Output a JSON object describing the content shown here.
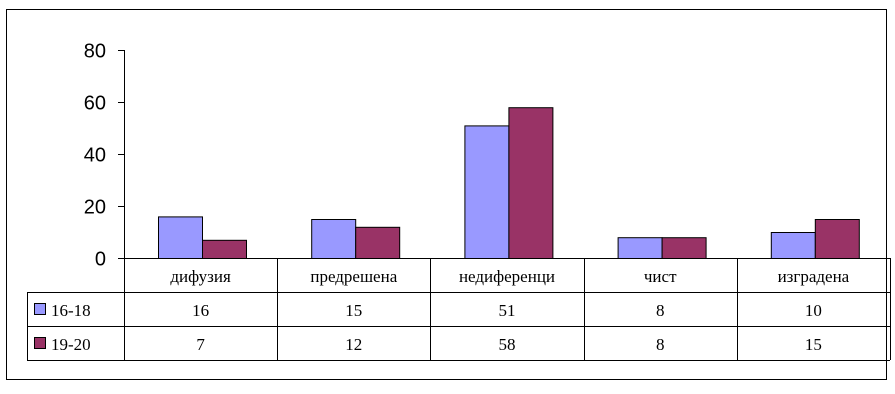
{
  "chart_data": {
    "type": "bar",
    "categories": [
      "дифузия",
      "предрешена",
      "недиференци",
      "чист",
      "изградена"
    ],
    "series": [
      {
        "name": "16-18",
        "values": [
          16,
          15,
          51,
          8,
          10
        ],
        "color": "#9999ff"
      },
      {
        "name": "19-20",
        "values": [
          7,
          12,
          58,
          8,
          15
        ],
        "color": "#993366"
      }
    ],
    "ylim": [
      0,
      80
    ],
    "yticks": [
      0,
      20,
      40,
      60,
      80
    ],
    "grid": false,
    "legend": "data-table",
    "data_table": true
  }
}
